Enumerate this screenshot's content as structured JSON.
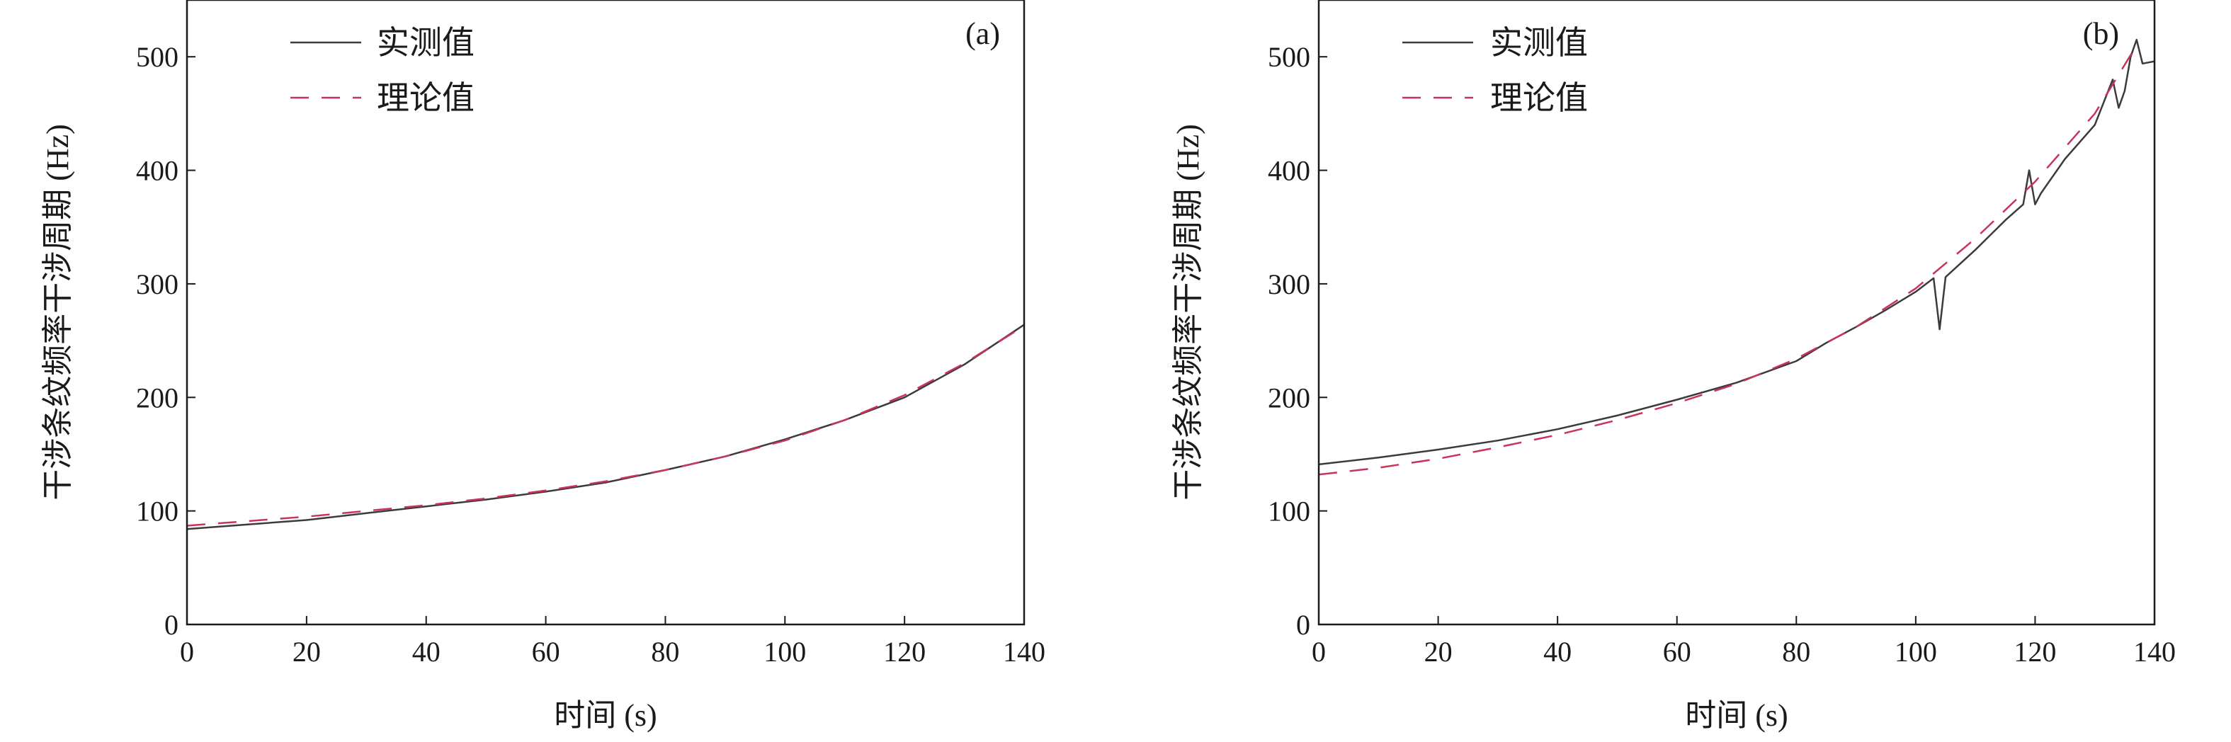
{
  "colors": {
    "measured": "#3b3b3b",
    "measured_accent": "#1f78c8",
    "theoretical": "#c8335a",
    "axis": "#1a1a1a"
  },
  "chart_data": [
    {
      "type": "line",
      "panel_label": "(a)",
      "xlabel": "时间 (s)",
      "ylabel": "干涉条纹频率干涉周期 (Hz)",
      "xlim": [
        0,
        140
      ],
      "ylim": [
        0,
        550
      ],
      "xticks": [
        0,
        20,
        40,
        60,
        80,
        100,
        120,
        140
      ],
      "yticks": [
        0,
        100,
        200,
        300,
        400,
        500
      ],
      "legend": {
        "position": "top-left",
        "entries": [
          "实测值",
          "理论值"
        ]
      },
      "grid": false,
      "series": [
        {
          "name": "实测值",
          "style": "solid",
          "x": [
            0,
            10,
            20,
            30,
            40,
            50,
            60,
            70,
            80,
            90,
            100,
            110,
            120,
            130,
            140
          ],
          "y": [
            84,
            88,
            92,
            98,
            104,
            110,
            117,
            125,
            136,
            148,
            163,
            180,
            200,
            229,
            264
          ]
        },
        {
          "name": "理论值",
          "style": "dashed",
          "x": [
            0,
            10,
            20,
            30,
            40,
            50,
            60,
            70,
            80,
            90,
            100,
            110,
            120,
            130,
            140
          ],
          "y": [
            87,
            91,
            95,
            100,
            105,
            111,
            118,
            126,
            136,
            148,
            162,
            180,
            202,
            230,
            263
          ]
        }
      ]
    },
    {
      "type": "line",
      "panel_label": "(b)",
      "xlabel": "时间 (s)",
      "ylabel": "干涉条纹频率干涉周期 (Hz)",
      "xlim": [
        0,
        140
      ],
      "ylim": [
        0,
        550
      ],
      "xticks": [
        0,
        20,
        40,
        60,
        80,
        100,
        120,
        140
      ],
      "yticks": [
        0,
        100,
        200,
        300,
        400,
        500
      ],
      "legend": {
        "position": "top-left",
        "entries": [
          "实测值",
          "理论值"
        ]
      },
      "grid": false,
      "series": [
        {
          "name": "实测值",
          "style": "solid",
          "x": [
            0,
            10,
            20,
            30,
            40,
            50,
            60,
            70,
            80,
            85,
            90,
            95,
            100,
            103,
            104,
            105,
            110,
            115,
            118,
            119,
            120,
            121,
            125,
            130,
            133,
            134,
            135,
            136,
            137,
            138,
            140
          ],
          "y": [
            141,
            147,
            154,
            162,
            172,
            184,
            198,
            213,
            232,
            248,
            262,
            277,
            293,
            305,
            260,
            306,
            330,
            356,
            370,
            400,
            370,
            380,
            410,
            440,
            480,
            455,
            470,
            500,
            515,
            494,
            496
          ]
        },
        {
          "name": "理论值",
          "style": "dashed",
          "x": [
            0,
            10,
            20,
            30,
            40,
            50,
            60,
            70,
            80,
            90,
            100,
            110,
            120,
            130,
            137
          ],
          "y": [
            132,
            138,
            146,
            156,
            167,
            180,
            195,
            212,
            234,
            262,
            296,
            340,
            390,
            450,
            510
          ]
        }
      ]
    }
  ]
}
